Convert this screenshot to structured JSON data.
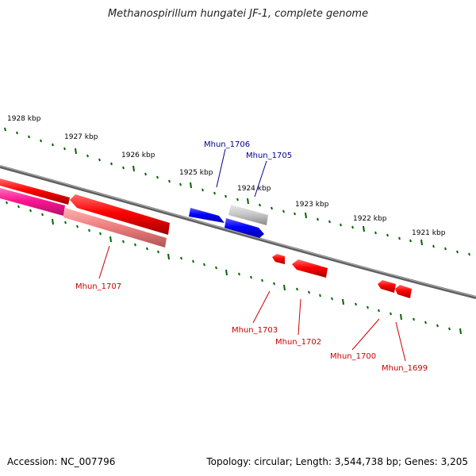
{
  "title": "Methanospirillum hungatei JF-1, complete genome",
  "footer": {
    "accession": "Accession: NC_007796",
    "summary": "Topology: circular; Length: 3,544,738 bp; Genes: 3,205"
  },
  "scale_labels": [
    "1928 kbp",
    "1927 kbp",
    "1926 kbp",
    "1925 kbp",
    "1924 kbp",
    "1923 kbp",
    "1922 kbp",
    "1921 kbp"
  ],
  "genes": {
    "mhun_1706": "Mhun_1706",
    "mhun_1705": "Mhun_1705",
    "mhun_1707": "Mhun_1707",
    "mhun_1703": "Mhun_1703",
    "mhun_1702": "Mhun_1702",
    "mhun_1700": "Mhun_1700",
    "mhun_1699": "Mhun_1699"
  },
  "colors": {
    "forward_strand": "#0000ff",
    "reverse_strand": "#ff0000",
    "forward_label": "#00008b",
    "reverse_label": "#cc0000",
    "pink_feature": "#ff1493",
    "pseudo_feature": "#c0c0c0",
    "tick": "#006400",
    "backbone": "#808080"
  }
}
